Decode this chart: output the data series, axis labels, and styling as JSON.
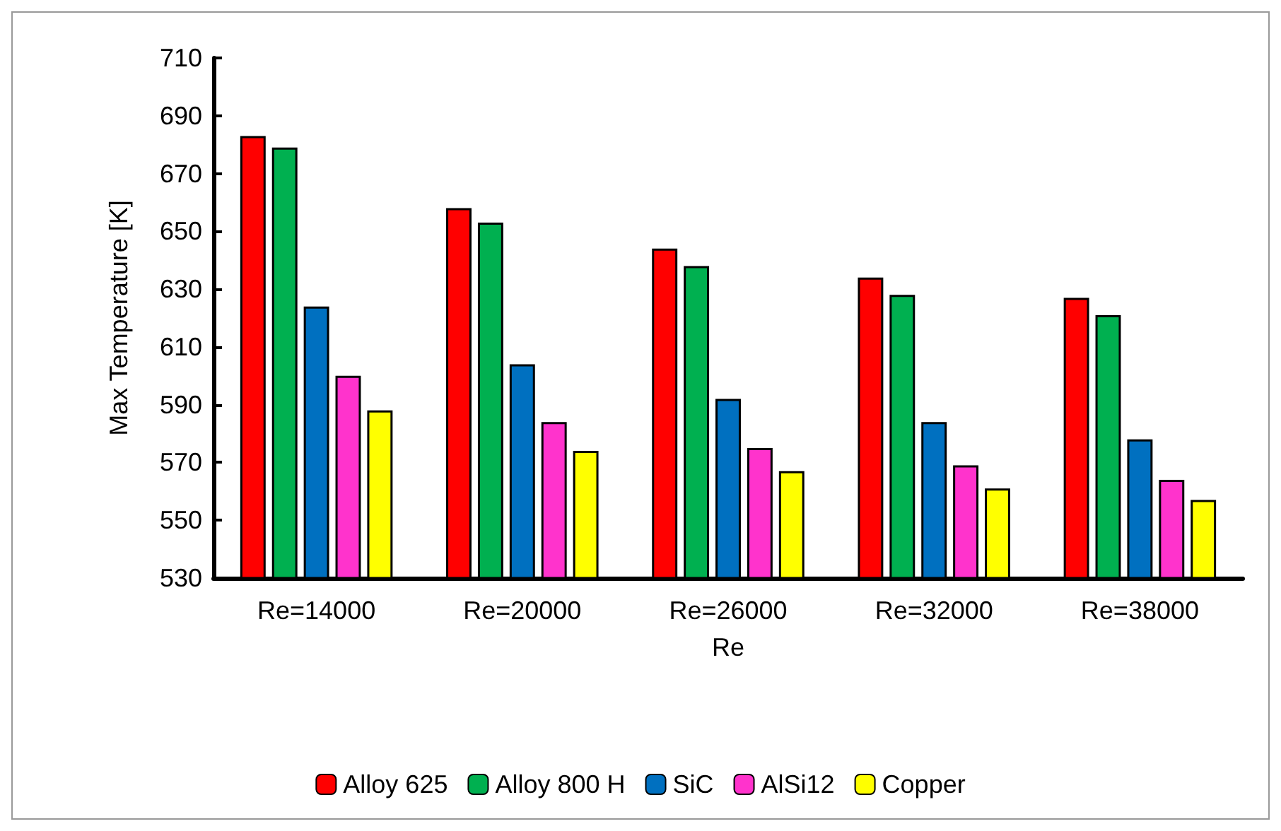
{
  "chart_data": {
    "type": "bar",
    "xlabel": "Re",
    "ylabel": "Max Temperature [K]",
    "categories": [
      "Re=14000",
      "Re=20000",
      "Re=26000",
      "Re=32000",
      "Re=38000"
    ],
    "series": [
      {
        "name": "Alloy 625",
        "color": "#ff0000",
        "values": [
          683,
          658,
          644,
          634,
          627
        ]
      },
      {
        "name": "Alloy 800 H",
        "color": "#00b050",
        "values": [
          679,
          653,
          638,
          628,
          621
        ]
      },
      {
        "name": "SiC",
        "color": "#0070c0",
        "values": [
          624,
          604,
          592,
          584,
          578
        ]
      },
      {
        "name": "AlSi12",
        "color": "#ff33cc",
        "values": [
          600,
          584,
          575,
          569,
          564
        ]
      },
      {
        "name": "Copper",
        "color": "#ffff00",
        "values": [
          588,
          574,
          567,
          561,
          557
        ]
      }
    ],
    "ylim": [
      530,
      710
    ],
    "yticks": [
      530,
      550,
      570,
      590,
      610,
      630,
      650,
      670,
      690,
      710
    ],
    "grid": false,
    "legend": "bottom"
  }
}
